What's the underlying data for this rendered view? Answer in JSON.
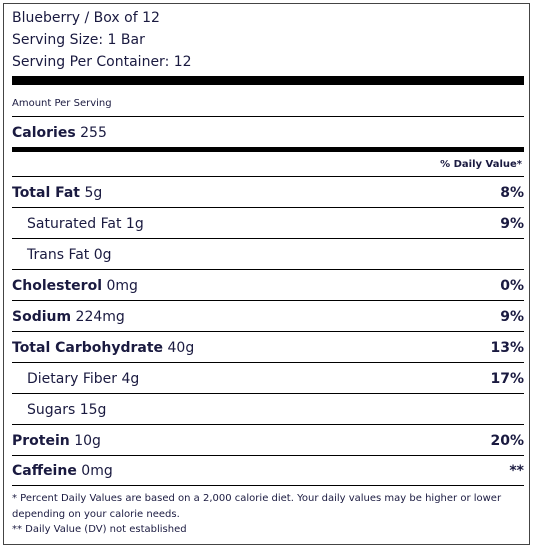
{
  "header": {
    "product": "Blueberry / Box of 12",
    "serving_size": "Serving Size: 1 Bar",
    "servings_per_container": "Serving Per Container: 12"
  },
  "amount_per_serving": "Amount Per Serving",
  "calories": {
    "label": "Calories",
    "value": "255"
  },
  "daily_value_heading": "% Daily Value*",
  "nutrients": [
    {
      "label": "Total Fat",
      "amount": "5g",
      "dv": "8%"
    },
    {
      "label": "Saturated Fat",
      "amount": "1g",
      "dv": "9%"
    },
    {
      "label": "Trans Fat",
      "amount": "0g",
      "dv": ""
    },
    {
      "label": "Cholesterol",
      "amount": "0mg",
      "dv": "0%"
    },
    {
      "label": "Sodium",
      "amount": "224mg",
      "dv": "9%"
    },
    {
      "label": "Total Carbohydrate",
      "amount": "40g",
      "dv": "13%"
    },
    {
      "label": "Dietary Fiber",
      "amount": "4g",
      "dv": "17%"
    },
    {
      "label": "Sugars",
      "amount": "15g",
      "dv": ""
    },
    {
      "label": "Protein",
      "amount": "10g",
      "dv": "20%"
    },
    {
      "label": "Caffeine",
      "amount": "0mg",
      "dv": "**"
    }
  ],
  "footnotes": {
    "dv_note": "* Percent Daily Values are based on a 2,000 calorie diet. Your daily values may be higher or lower depending on your calorie needs.",
    "dv_not_established": "** Daily Value (DV) not established"
  }
}
